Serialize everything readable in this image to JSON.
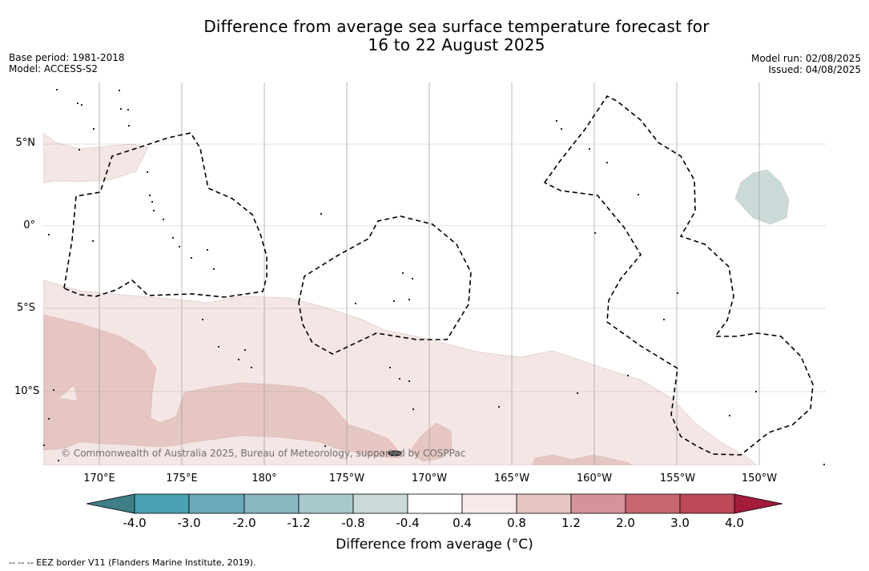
{
  "title": {
    "line1": "Difference from average sea surface temperature forecast for",
    "line2": "16 to 22 August 2025"
  },
  "meta_left": {
    "base_period": "Base period: 1981-2018",
    "model": "Model: ACCESS-S2"
  },
  "meta_right": {
    "model_run": "Model run: 02/08/2025",
    "issued": "Issued: 04/08/2025"
  },
  "map": {
    "lat_labels": [
      "5°N",
      "0°",
      "5°S",
      "10°S"
    ],
    "lon_labels": [
      "170°E",
      "175°E",
      "180°",
      "175°W",
      "170°W",
      "165°W",
      "160°W",
      "155°W",
      "150°W"
    ],
    "copyright": "© Commonwealth of Australia 2025, Bureau of Meteorology, supported by COSPPac",
    "colors": {
      "anomaly_0_4_to_0_8": "#f4e6e4",
      "anomaly_0_8_to_1_2": "#e6c6c2",
      "anomaly_neg_0_8_to_neg_0_4": "#cadad9",
      "land": "#222222",
      "eez": "#000000"
    }
  },
  "colorbar": {
    "ticks": [
      "-4.0",
      "-3.0",
      "-2.0",
      "-1.2",
      "-0.8",
      "-0.4",
      "0.4",
      "0.8",
      "1.2",
      "2.0",
      "3.0",
      "4.0"
    ],
    "colors": [
      "#3f7e86",
      "#4aa1b1",
      "#69a9b8",
      "#88b6c1",
      "#a8c8cd",
      "#c9dad8",
      "#ffffff",
      "#f6e9e7",
      "#e6c6c2",
      "#d4939a",
      "#c86670",
      "#be4a59",
      "#a31c3b"
    ],
    "label": "Difference from average (°C)"
  },
  "footnote": "--  --  -- EEZ border V11 (Flanders Marine Institute, 2019)."
}
